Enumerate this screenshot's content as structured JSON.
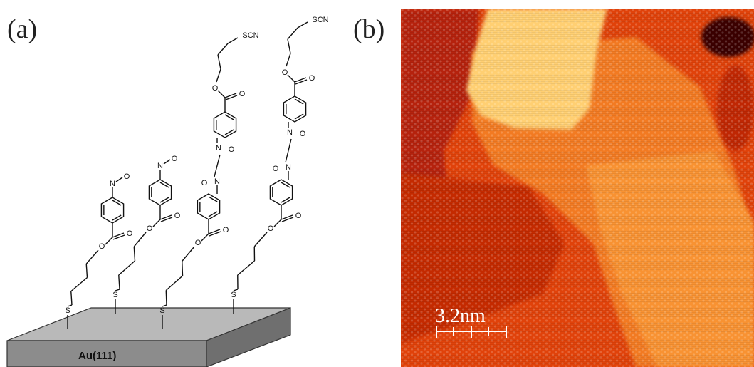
{
  "panel_a": {
    "label": "(a)",
    "substrate_label": "Au(111)",
    "atoms": {
      "sulfur": "S",
      "oxygen": "O",
      "nitrogen": "N",
      "thiocyanate": "SCN"
    }
  },
  "panel_b": {
    "label": "(b)",
    "scale_bar_label": "3.2nm"
  },
  "colors": {
    "stm_dark": "#b01a00",
    "stm_mid": "#e0420a",
    "stm_bright": "#f8a040",
    "stm_highlight": "#ffd27a",
    "substrate_top": "#b9b9b9",
    "substrate_front": "#8a8a8a"
  }
}
